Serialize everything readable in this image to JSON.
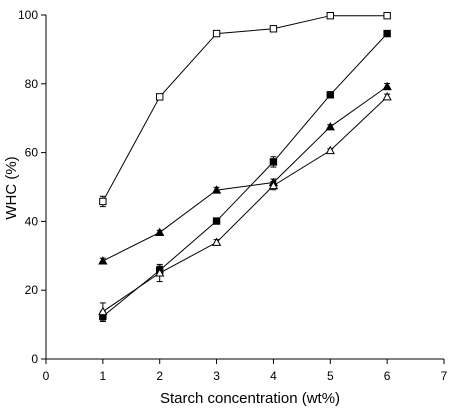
{
  "chart_data": {
    "type": "scatter",
    "xlabel": "Starch concentration (wt%)",
    "ylabel": "WHC (%)",
    "xlim": [
      0,
      7
    ],
    "ylim": [
      0,
      100
    ],
    "xticks": [
      0,
      1,
      2,
      3,
      4,
      5,
      6,
      7
    ],
    "yticks": [
      0,
      20,
      40,
      60,
      80,
      100
    ],
    "grid": false,
    "legend": "none",
    "x": [
      1,
      2,
      3,
      4,
      5,
      6
    ],
    "series": [
      {
        "marker": "open-square",
        "values": [
          45.8,
          76.2,
          94.6,
          96.0,
          99.8,
          99.8
        ],
        "errors": [
          1.5,
          0.8,
          0.5,
          0.5,
          0.4,
          0.4
        ]
      },
      {
        "marker": "filled-square",
        "values": [
          12.4,
          25.8,
          40.1,
          57.3,
          76.8,
          94.6
        ],
        "errors": [
          1.5,
          1.2,
          0.8,
          1.5,
          0.8,
          0.6
        ]
      },
      {
        "marker": "filled-triangle",
        "values": [
          28.5,
          36.8,
          49.1,
          51.3,
          67.5,
          79.2
        ],
        "errors": [
          0.8,
          0.6,
          0.8,
          1.0,
          0.6,
          0.9
        ]
      },
      {
        "marker": "open-triangle",
        "values": [
          13.8,
          25.0,
          33.9,
          50.4,
          60.6,
          76.2
        ],
        "errors": [
          2.5,
          2.5,
          0.8,
          1.2,
          0.5,
          0.8
        ]
      }
    ]
  }
}
